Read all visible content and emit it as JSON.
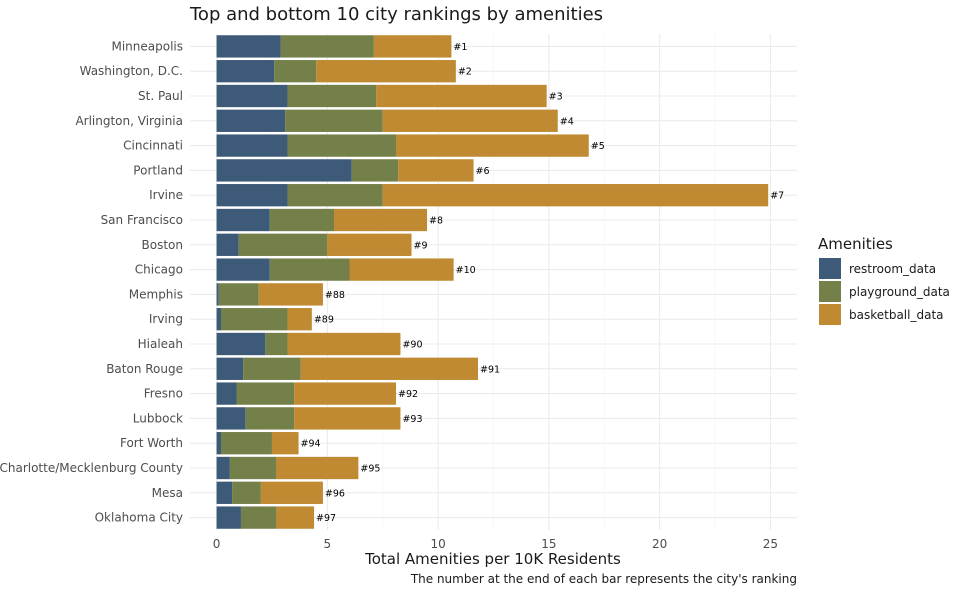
{
  "chart_data": {
    "type": "bar",
    "orientation": "horizontal",
    "stacked": true,
    "title": "Top and bottom 10 city rankings by amenities",
    "xlabel": "Total Amenities per 10K  Residents",
    "caption": "The number at the end of each bar represents the city's ranking",
    "xlim": [
      -1.2,
      26.2
    ],
    "xticks": [
      "0",
      "5",
      "10",
      "15",
      "20",
      "25"
    ],
    "grid": true,
    "legend": {
      "title": "Amenities",
      "position": "right"
    },
    "categories": [
      "Minneapolis",
      "Washington, D.C.",
      "St. Paul",
      "Arlington, Virginia",
      "Cincinnati",
      "Portland",
      "Irvine",
      "San Francisco",
      "Boston",
      "Chicago",
      "Memphis",
      "Irving",
      "Hialeah",
      "Baton Rouge",
      "Fresno",
      "Lubbock",
      "Fort Worth",
      "Charlotte/Mecklenburg County",
      "Mesa",
      "Oklahoma City"
    ],
    "rank_labels": [
      "#1",
      "#2",
      "#3",
      "#4",
      "#5",
      "#6",
      "#7",
      "#8",
      "#9",
      "#10",
      "#88",
      "#89",
      "#90",
      "#91",
      "#92",
      "#93",
      "#94",
      "#95",
      "#96",
      "#97"
    ],
    "series": [
      {
        "name": "restroom_data",
        "color": "#3d5a78",
        "values": [
          2.9,
          2.6,
          3.2,
          3.1,
          3.2,
          6.1,
          3.2,
          2.4,
          1.0,
          2.4,
          0.1,
          0.2,
          2.2,
          1.2,
          0.9,
          1.3,
          0.2,
          0.6,
          0.7,
          1.1
        ]
      },
      {
        "name": "playground_data",
        "color": "#748049",
        "values": [
          4.2,
          1.9,
          4.0,
          4.4,
          4.9,
          2.1,
          4.3,
          2.9,
          4.0,
          3.6,
          1.8,
          3.0,
          1.0,
          2.6,
          2.6,
          2.2,
          2.3,
          2.1,
          1.3,
          1.6
        ]
      },
      {
        "name": "basketball_data",
        "color": "#bf8a31",
        "values": [
          3.5,
          6.3,
          7.7,
          7.9,
          8.7,
          3.4,
          17.4,
          4.2,
          3.8,
          4.7,
          2.9,
          1.1,
          5.1,
          8.0,
          4.6,
          4.8,
          1.2,
          3.7,
          2.8,
          1.7
        ]
      }
    ]
  }
}
